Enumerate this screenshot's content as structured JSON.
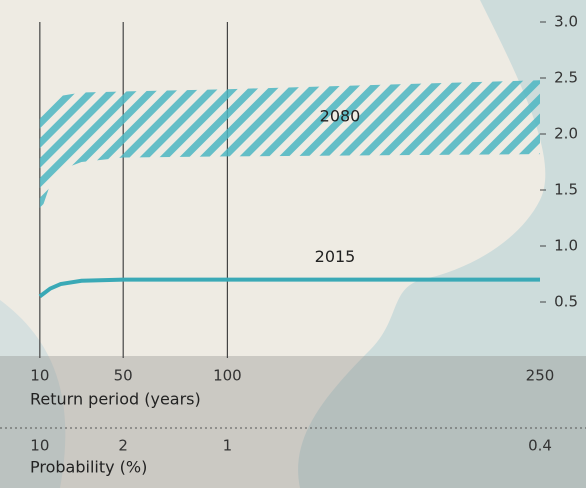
{
  "chart_data": {
    "type": "line",
    "x": [
      10,
      15,
      20,
      30,
      50,
      100,
      250
    ],
    "series": [
      {
        "name": "2080",
        "color": "#4cb6c2",
        "upper": [
          2.2,
          2.3,
          2.34,
          2.37,
          2.38,
          2.4,
          2.48
        ],
        "lower": [
          1.28,
          1.55,
          1.68,
          1.75,
          1.79,
          1.8,
          1.82
        ]
      },
      {
        "name": "2015",
        "color": "#3aa9b6",
        "values": [
          0.55,
          0.62,
          0.66,
          0.69,
          0.7,
          0.7,
          0.7
        ]
      }
    ],
    "xlim": [
      0,
      250
    ],
    "xticks": [
      10,
      50,
      100,
      250
    ],
    "xlabel": "Return period (years)",
    "x2ticks": [
      10,
      2,
      1,
      0.4
    ],
    "x2label": "Probability (%)",
    "ylim": [
      0,
      3.0
    ],
    "yticks": [
      {
        "value": 0.5,
        "label": "0.5"
      },
      {
        "value": 1.0,
        "label": "1.0"
      },
      {
        "value": 1.5,
        "label": "1.5"
      },
      {
        "value": 2.0,
        "label": "2.0"
      },
      {
        "value": 2.5,
        "label": "2.5"
      },
      {
        "value": 3.0,
        "label": "3.0"
      }
    ]
  }
}
